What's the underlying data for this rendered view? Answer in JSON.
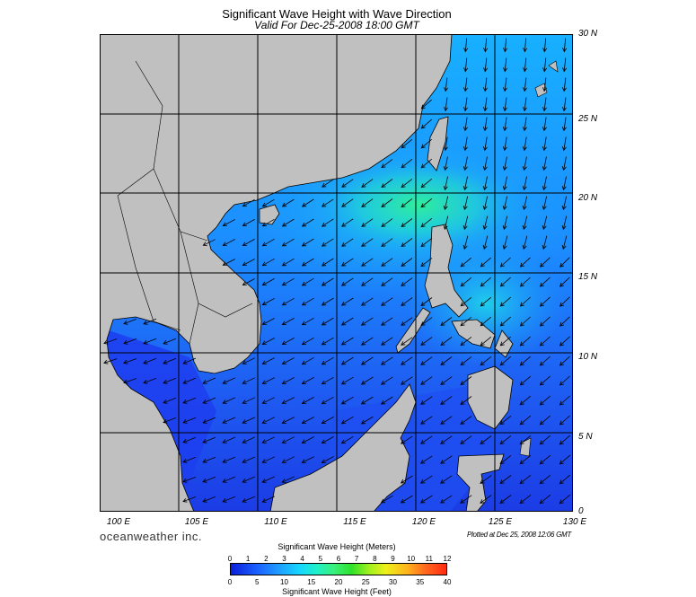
{
  "title": "Significant Wave Height with Wave Direction",
  "subtitle": "Valid For Dec-25-2008 18:00 GMT",
  "lat_labels": [
    "30 N",
    "25 N",
    "20 N",
    "15 N",
    "10 N",
    "5 N",
    "0"
  ],
  "lon_labels": [
    "100 E",
    "105 E",
    "110 E",
    "115 E",
    "120 E",
    "125 E",
    "130 E"
  ],
  "brand": "oceanweather inc.",
  "plotted": "Plotted at Dec 25, 2008 12:06 GMT",
  "colorbar": {
    "title_meters": "Significant Wave Height (Meters)",
    "title_feet": "Significant Wave Height (Feet)",
    "meters_ticks": [
      "0",
      "1",
      "2",
      "3",
      "4",
      "5",
      "6",
      "7",
      "8",
      "9",
      "10",
      "11",
      "12"
    ],
    "feet_ticks": [
      "0",
      "5",
      "10",
      "15",
      "20",
      "25",
      "30",
      "35",
      "40"
    ]
  },
  "map": {
    "lon_range": [
      100,
      130
    ],
    "lat_range": [
      0,
      30
    ],
    "grid_step_deg": 5,
    "land_color": "#c0c0c0",
    "sea_low_color": "#1e3cf0",
    "sea_mid_color": "#1a9cff",
    "sea_high_color": "#2ef0a0",
    "arrow_direction": "southwest"
  }
}
